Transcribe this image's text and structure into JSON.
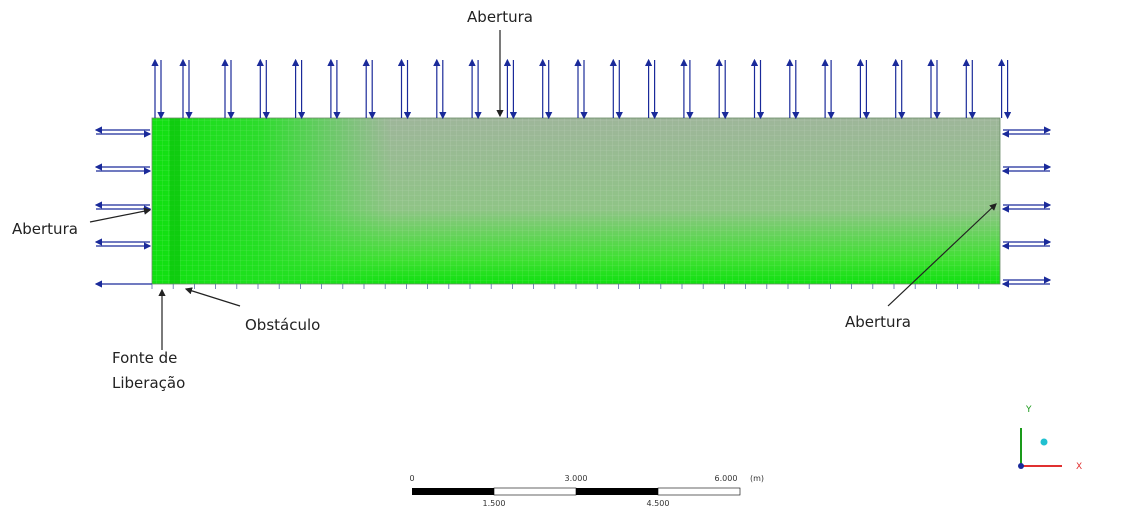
{
  "annotations": {
    "top": "Abertura",
    "left": "Abertura",
    "right": "Abertura",
    "obstacle": "Obstáculo",
    "source_line1": "Fonte de",
    "source_line2": "Liberação"
  },
  "scale_bar": {
    "top_labels": [
      "0",
      "3.000",
      "6.000"
    ],
    "unit": "(m)",
    "bottom_labels": [
      "1.500",
      "4.500"
    ]
  },
  "axes": {
    "y": "Y",
    "x": "X"
  }
}
